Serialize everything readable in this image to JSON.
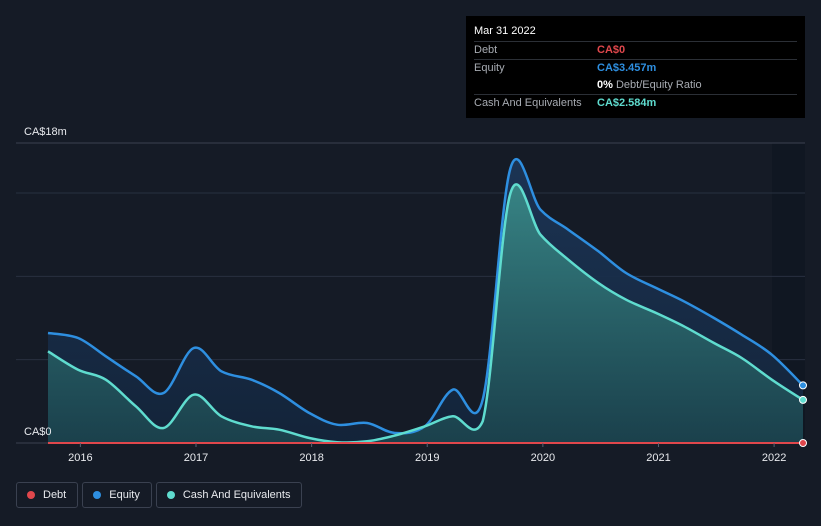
{
  "tooltip": {
    "date": "Mar 31 2022",
    "debt_label": "Debt",
    "debt_value": "CA$0",
    "equity_label": "Equity",
    "equity_value": "CA$3.457m",
    "ratio_pct": "0%",
    "ratio_label": "Debt/Equity Ratio",
    "cash_label": "Cash And Equivalents",
    "cash_value": "CA$2.584m"
  },
  "legend": {
    "debt": "Debt",
    "equity": "Equity",
    "cash": "Cash And Equivalents"
  },
  "colors": {
    "debt": "#e0474c",
    "equity": "#2e8fe0",
    "cash": "#5fdccf",
    "background": "#151b26"
  },
  "chart_data": {
    "type": "area",
    "title": "",
    "y_max_label": "CA$18m",
    "y_min_label": "CA$0",
    "ylim": [
      0,
      18
    ],
    "xlim": [
      2015.72,
      2022.25
    ],
    "x_ticks": [
      2016,
      2017,
      2018,
      2019,
      2020,
      2021,
      2022
    ],
    "x_tick_labels": [
      "2016",
      "2017",
      "2018",
      "2019",
      "2020",
      "2021",
      "2022"
    ],
    "series": [
      {
        "name": "Equity",
        "key": "equity",
        "x": [
          2015.72,
          2015.98,
          2016.22,
          2016.48,
          2016.72,
          2016.98,
          2017.22,
          2017.48,
          2017.72,
          2017.98,
          2018.22,
          2018.48,
          2018.72,
          2018.98,
          2019.22,
          2019.48,
          2019.72,
          2019.98,
          2020.22,
          2020.48,
          2020.72,
          2020.98,
          2021.22,
          2021.48,
          2021.72,
          2021.98,
          2022.25
        ],
        "values": [
          6.6,
          6.3,
          5.2,
          4.0,
          3.0,
          5.7,
          4.3,
          3.8,
          3.0,
          1.8,
          1.1,
          1.2,
          0.6,
          1.0,
          3.2,
          2.6,
          16.5,
          14.0,
          12.8,
          11.5,
          10.2,
          9.3,
          8.5,
          7.5,
          6.5,
          5.3,
          3.457
        ]
      },
      {
        "name": "Cash And Equivalents",
        "key": "cash",
        "x": [
          2015.72,
          2015.98,
          2016.22,
          2016.48,
          2016.72,
          2016.98,
          2017.22,
          2017.48,
          2017.72,
          2017.98,
          2018.22,
          2018.48,
          2018.72,
          2018.98,
          2019.22,
          2019.48,
          2019.72,
          2019.98,
          2020.22,
          2020.48,
          2020.72,
          2020.98,
          2021.22,
          2021.48,
          2021.72,
          2021.98,
          2022.25
        ],
        "values": [
          5.5,
          4.4,
          3.8,
          2.2,
          0.9,
          2.9,
          1.6,
          1.0,
          0.8,
          0.3,
          0.05,
          0.1,
          0.45,
          1.0,
          1.6,
          1.3,
          15.0,
          12.5,
          11.0,
          9.6,
          8.6,
          7.8,
          7.0,
          6.0,
          5.1,
          3.8,
          2.584
        ]
      },
      {
        "name": "Debt",
        "key": "debt",
        "x": [
          2015.72,
          2022.25
        ],
        "values": [
          0,
          0
        ]
      }
    ]
  }
}
